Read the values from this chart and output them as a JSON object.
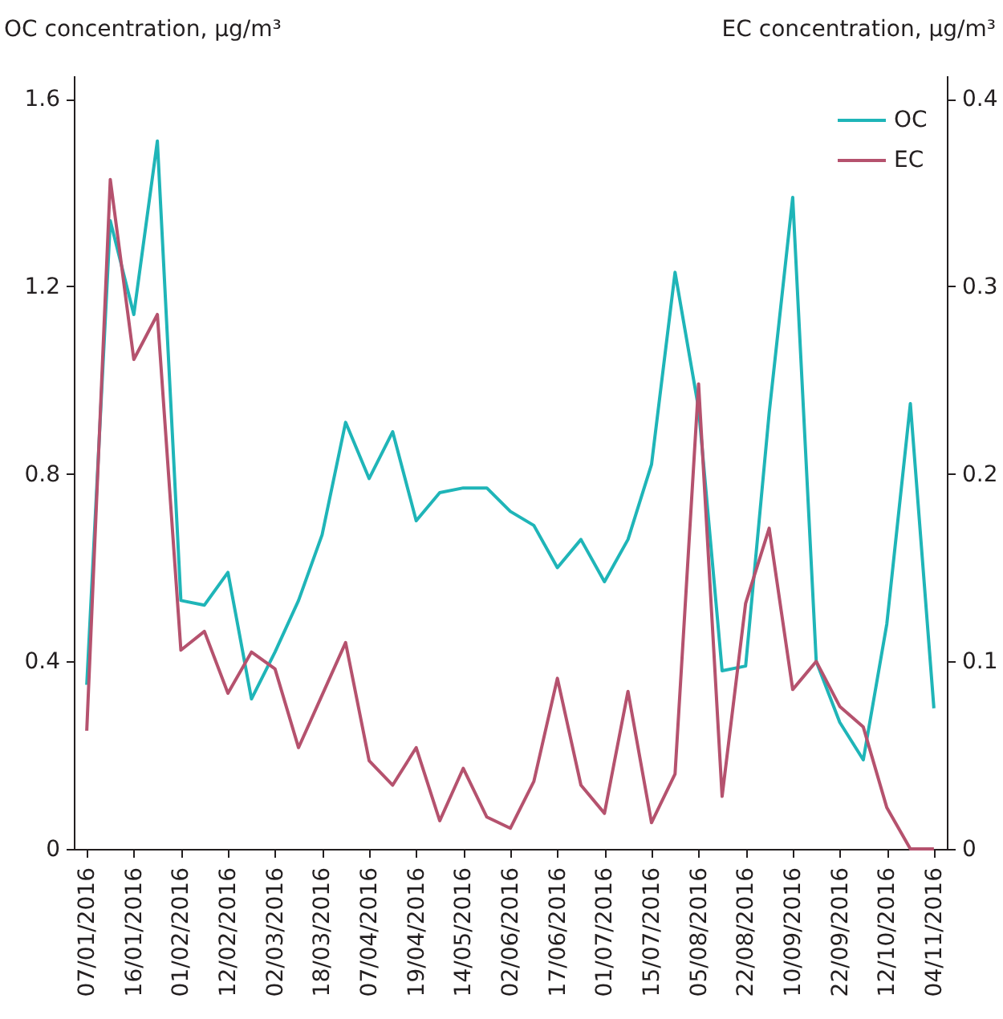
{
  "chart_data": {
    "type": "line",
    "ylabel": "OC concentration, μg/m³",
    "y2label": "EC concentration, μg/m³",
    "categories": [
      "07/01/2016",
      null,
      "16/01/2016",
      null,
      "01/02/2016",
      null,
      "12/02/2016",
      null,
      "02/03/2016",
      null,
      "18/03/2016",
      null,
      "07/04/2016",
      null,
      "19/04/2016",
      null,
      "14/05/2016",
      null,
      "02/06/2016",
      null,
      "17/06/2016",
      null,
      "01/07/2016",
      null,
      "15/07/2016",
      null,
      "05/08/2016",
      null,
      "22/08/2016",
      null,
      "10/09/2016",
      null,
      "22/09/2016",
      null,
      "12/10/2016",
      null,
      "04/11/2016"
    ],
    "series": [
      {
        "name": "OC",
        "color": "#1fb5b8",
        "values": [
          0.35,
          1.34,
          1.14,
          1.51,
          0.53,
          0.52,
          0.59,
          0.32,
          0.42,
          0.53,
          0.67,
          0.91,
          0.79,
          0.89,
          0.7,
          0.76,
          0.77,
          0.77,
          0.72,
          0.69,
          0.6,
          0.66,
          0.57,
          0.66,
          0.82,
          1.23,
          0.94,
          0.38,
          0.39,
          0.93,
          1.39,
          0.4,
          0.27,
          0.19,
          0.48,
          0.95,
          0.3
        ]
      },
      {
        "name": "EC",
        "color": "#b5526e",
        "axis": "y2",
        "values": [
          0.063,
          0.357,
          0.261,
          0.285,
          0.106,
          0.116,
          0.083,
          0.105,
          0.096,
          0.054,
          0.082,
          0.11,
          0.047,
          0.034,
          0.054,
          0.015,
          0.043,
          0.017,
          0.011,
          0.036,
          0.091,
          0.034,
          0.019,
          0.084,
          0.014,
          0.04,
          0.248,
          0.028,
          0.131,
          0.171,
          0.085,
          0.1,
          0.076,
          0.065,
          0.022,
          0,
          0
        ]
      }
    ],
    "ylim": [
      0,
      1.65
    ],
    "yticks": [
      {
        "value": 0,
        "label": "0"
      },
      0.4,
      0.8,
      1.2,
      1.6
    ],
    "y2lim": [
      0,
      0.4125
    ],
    "y2ticks": [
      {
        "value": 0,
        "label": "0"
      },
      0.1,
      0.2,
      0.3,
      0.4
    ],
    "grid": false,
    "legend": "top right",
    "marker": "none",
    "line_style": "solid"
  }
}
